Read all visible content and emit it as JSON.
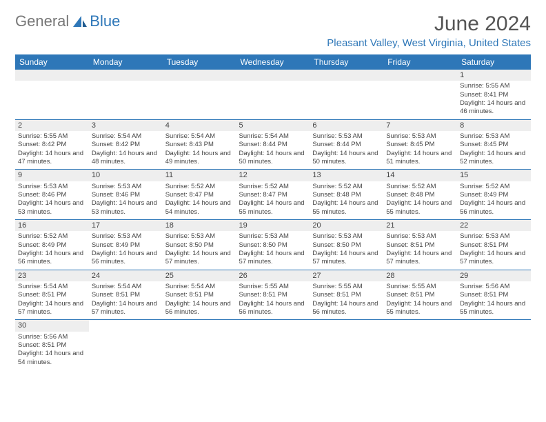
{
  "logo": {
    "text1": "General",
    "text2": "Blue"
  },
  "title": "June 2024",
  "location": "Pleasant Valley, West Virginia, United States",
  "colors": {
    "accent": "#2e77b8",
    "header_bg": "#2e77b8",
    "stripe": "#eeeeee"
  },
  "daysOfWeek": [
    "Sunday",
    "Monday",
    "Tuesday",
    "Wednesday",
    "Thursday",
    "Friday",
    "Saturday"
  ],
  "weeks": [
    [
      null,
      null,
      null,
      null,
      null,
      null,
      {
        "n": "1",
        "sr": "5:55 AM",
        "ss": "8:41 PM",
        "dl": "14 hours and 46 minutes."
      }
    ],
    [
      {
        "n": "2",
        "sr": "5:55 AM",
        "ss": "8:42 PM",
        "dl": "14 hours and 47 minutes."
      },
      {
        "n": "3",
        "sr": "5:54 AM",
        "ss": "8:42 PM",
        "dl": "14 hours and 48 minutes."
      },
      {
        "n": "4",
        "sr": "5:54 AM",
        "ss": "8:43 PM",
        "dl": "14 hours and 49 minutes."
      },
      {
        "n": "5",
        "sr": "5:54 AM",
        "ss": "8:44 PM",
        "dl": "14 hours and 50 minutes."
      },
      {
        "n": "6",
        "sr": "5:53 AM",
        "ss": "8:44 PM",
        "dl": "14 hours and 50 minutes."
      },
      {
        "n": "7",
        "sr": "5:53 AM",
        "ss": "8:45 PM",
        "dl": "14 hours and 51 minutes."
      },
      {
        "n": "8",
        "sr": "5:53 AM",
        "ss": "8:45 PM",
        "dl": "14 hours and 52 minutes."
      }
    ],
    [
      {
        "n": "9",
        "sr": "5:53 AM",
        "ss": "8:46 PM",
        "dl": "14 hours and 53 minutes."
      },
      {
        "n": "10",
        "sr": "5:53 AM",
        "ss": "8:46 PM",
        "dl": "14 hours and 53 minutes."
      },
      {
        "n": "11",
        "sr": "5:52 AM",
        "ss": "8:47 PM",
        "dl": "14 hours and 54 minutes."
      },
      {
        "n": "12",
        "sr": "5:52 AM",
        "ss": "8:47 PM",
        "dl": "14 hours and 55 minutes."
      },
      {
        "n": "13",
        "sr": "5:52 AM",
        "ss": "8:48 PM",
        "dl": "14 hours and 55 minutes."
      },
      {
        "n": "14",
        "sr": "5:52 AM",
        "ss": "8:48 PM",
        "dl": "14 hours and 55 minutes."
      },
      {
        "n": "15",
        "sr": "5:52 AM",
        "ss": "8:49 PM",
        "dl": "14 hours and 56 minutes."
      }
    ],
    [
      {
        "n": "16",
        "sr": "5:52 AM",
        "ss": "8:49 PM",
        "dl": "14 hours and 56 minutes."
      },
      {
        "n": "17",
        "sr": "5:53 AM",
        "ss": "8:49 PM",
        "dl": "14 hours and 56 minutes."
      },
      {
        "n": "18",
        "sr": "5:53 AM",
        "ss": "8:50 PM",
        "dl": "14 hours and 57 minutes."
      },
      {
        "n": "19",
        "sr": "5:53 AM",
        "ss": "8:50 PM",
        "dl": "14 hours and 57 minutes."
      },
      {
        "n": "20",
        "sr": "5:53 AM",
        "ss": "8:50 PM",
        "dl": "14 hours and 57 minutes."
      },
      {
        "n": "21",
        "sr": "5:53 AM",
        "ss": "8:51 PM",
        "dl": "14 hours and 57 minutes."
      },
      {
        "n": "22",
        "sr": "5:53 AM",
        "ss": "8:51 PM",
        "dl": "14 hours and 57 minutes."
      }
    ],
    [
      {
        "n": "23",
        "sr": "5:54 AM",
        "ss": "8:51 PM",
        "dl": "14 hours and 57 minutes."
      },
      {
        "n": "24",
        "sr": "5:54 AM",
        "ss": "8:51 PM",
        "dl": "14 hours and 57 minutes."
      },
      {
        "n": "25",
        "sr": "5:54 AM",
        "ss": "8:51 PM",
        "dl": "14 hours and 56 minutes."
      },
      {
        "n": "26",
        "sr": "5:55 AM",
        "ss": "8:51 PM",
        "dl": "14 hours and 56 minutes."
      },
      {
        "n": "27",
        "sr": "5:55 AM",
        "ss": "8:51 PM",
        "dl": "14 hours and 56 minutes."
      },
      {
        "n": "28",
        "sr": "5:55 AM",
        "ss": "8:51 PM",
        "dl": "14 hours and 55 minutes."
      },
      {
        "n": "29",
        "sr": "5:56 AM",
        "ss": "8:51 PM",
        "dl": "14 hours and 55 minutes."
      }
    ],
    [
      {
        "n": "30",
        "sr": "5:56 AM",
        "ss": "8:51 PM",
        "dl": "14 hours and 54 minutes."
      },
      null,
      null,
      null,
      null,
      null,
      null
    ]
  ],
  "labels": {
    "sunrise": "Sunrise:",
    "sunset": "Sunset:",
    "daylight": "Daylight:"
  }
}
